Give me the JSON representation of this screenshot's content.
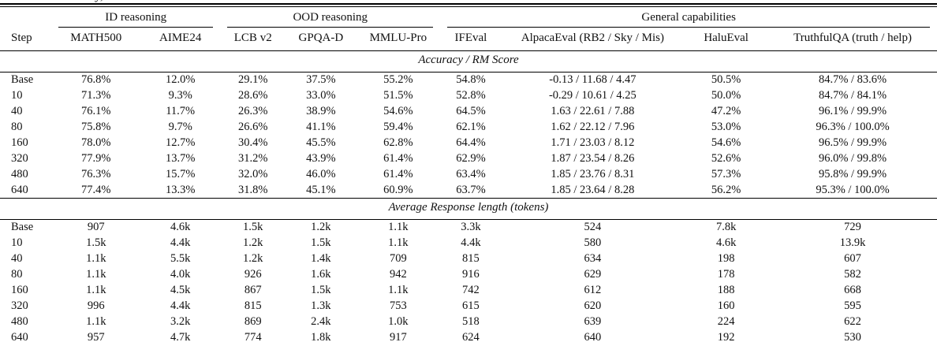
{
  "table": {
    "caption_fragment": "y,",
    "col_groups": [
      {
        "label": "ID reasoning",
        "colspan": 2
      },
      {
        "label": "OOD reasoning",
        "colspan": 3
      },
      {
        "label": "General capabilities",
        "colspan": 4
      }
    ],
    "columns": [
      "Step",
      "MATH500",
      "AIME24",
      "LCB v2",
      "GPQA-D",
      "MMLU-Pro",
      "IFEval",
      "AlpacaEval (RB2 / Sky / Mis)",
      "HaluEval",
      "TruthfulQA (truth / help)"
    ],
    "sections": [
      {
        "title": "Accuracy / RM Score",
        "rows": [
          [
            "Base",
            "76.8%",
            "12.0%",
            "29.1%",
            "37.5%",
            "55.2%",
            "54.8%",
            "-0.13 / 11.68 / 4.47",
            "50.5%",
            "84.7% / 83.6%"
          ],
          [
            "10",
            "71.3%",
            "9.3%",
            "28.6%",
            "33.0%",
            "51.5%",
            "52.8%",
            "-0.29 / 10.61 / 4.25",
            "50.0%",
            "84.7% / 84.1%"
          ],
          [
            "40",
            "76.1%",
            "11.7%",
            "26.3%",
            "38.9%",
            "54.6%",
            "64.5%",
            "1.63 / 22.61 / 7.88",
            "47.2%",
            "96.1% / 99.9%"
          ],
          [
            "80",
            "75.8%",
            "9.7%",
            "26.6%",
            "41.1%",
            "59.4%",
            "62.1%",
            "1.62 / 22.12 / 7.96",
            "53.0%",
            "96.3% / 100.0%"
          ],
          [
            "160",
            "78.0%",
            "12.7%",
            "30.4%",
            "45.5%",
            "62.8%",
            "64.4%",
            "1.71 / 23.03 / 8.12",
            "54.6%",
            "96.5% / 99.9%"
          ],
          [
            "320",
            "77.9%",
            "13.7%",
            "31.2%",
            "43.9%",
            "61.4%",
            "62.9%",
            "1.87 / 23.54 / 8.26",
            "52.6%",
            "96.0% / 99.8%"
          ],
          [
            "480",
            "76.3%",
            "15.7%",
            "32.0%",
            "46.0%",
            "61.4%",
            "63.4%",
            "1.85 / 23.76 / 8.31",
            "57.3%",
            "95.8% / 99.9%"
          ],
          [
            "640",
            "77.4%",
            "13.3%",
            "31.8%",
            "45.1%",
            "60.9%",
            "63.7%",
            "1.85 / 23.64 / 8.28",
            "56.2%",
            "95.3% / 100.0%"
          ]
        ]
      },
      {
        "title": "Average Response length (tokens)",
        "rows": [
          [
            "Base",
            "907",
            "4.6k",
            "1.5k",
            "1.2k",
            "1.1k",
            "3.3k",
            "524",
            "7.8k",
            "729"
          ],
          [
            "10",
            "1.5k",
            "4.4k",
            "1.2k",
            "1.5k",
            "1.1k",
            "4.4k",
            "580",
            "4.6k",
            "13.9k"
          ],
          [
            "40",
            "1.1k",
            "5.5k",
            "1.2k",
            "1.4k",
            "709",
            "815",
            "634",
            "198",
            "607"
          ],
          [
            "80",
            "1.1k",
            "4.0k",
            "926",
            "1.6k",
            "942",
            "916",
            "629",
            "178",
            "582"
          ],
          [
            "160",
            "1.1k",
            "4.5k",
            "867",
            "1.5k",
            "1.1k",
            "742",
            "612",
            "188",
            "668"
          ],
          [
            "320",
            "996",
            "4.4k",
            "815",
            "1.3k",
            "753",
            "615",
            "620",
            "160",
            "595"
          ],
          [
            "480",
            "1.1k",
            "3.2k",
            "869",
            "2.4k",
            "1.0k",
            "518",
            "639",
            "224",
            "622"
          ],
          [
            "640",
            "957",
            "4.7k",
            "774",
            "1.8k",
            "917",
            "624",
            "640",
            "192",
            "530"
          ]
        ]
      }
    ]
  }
}
